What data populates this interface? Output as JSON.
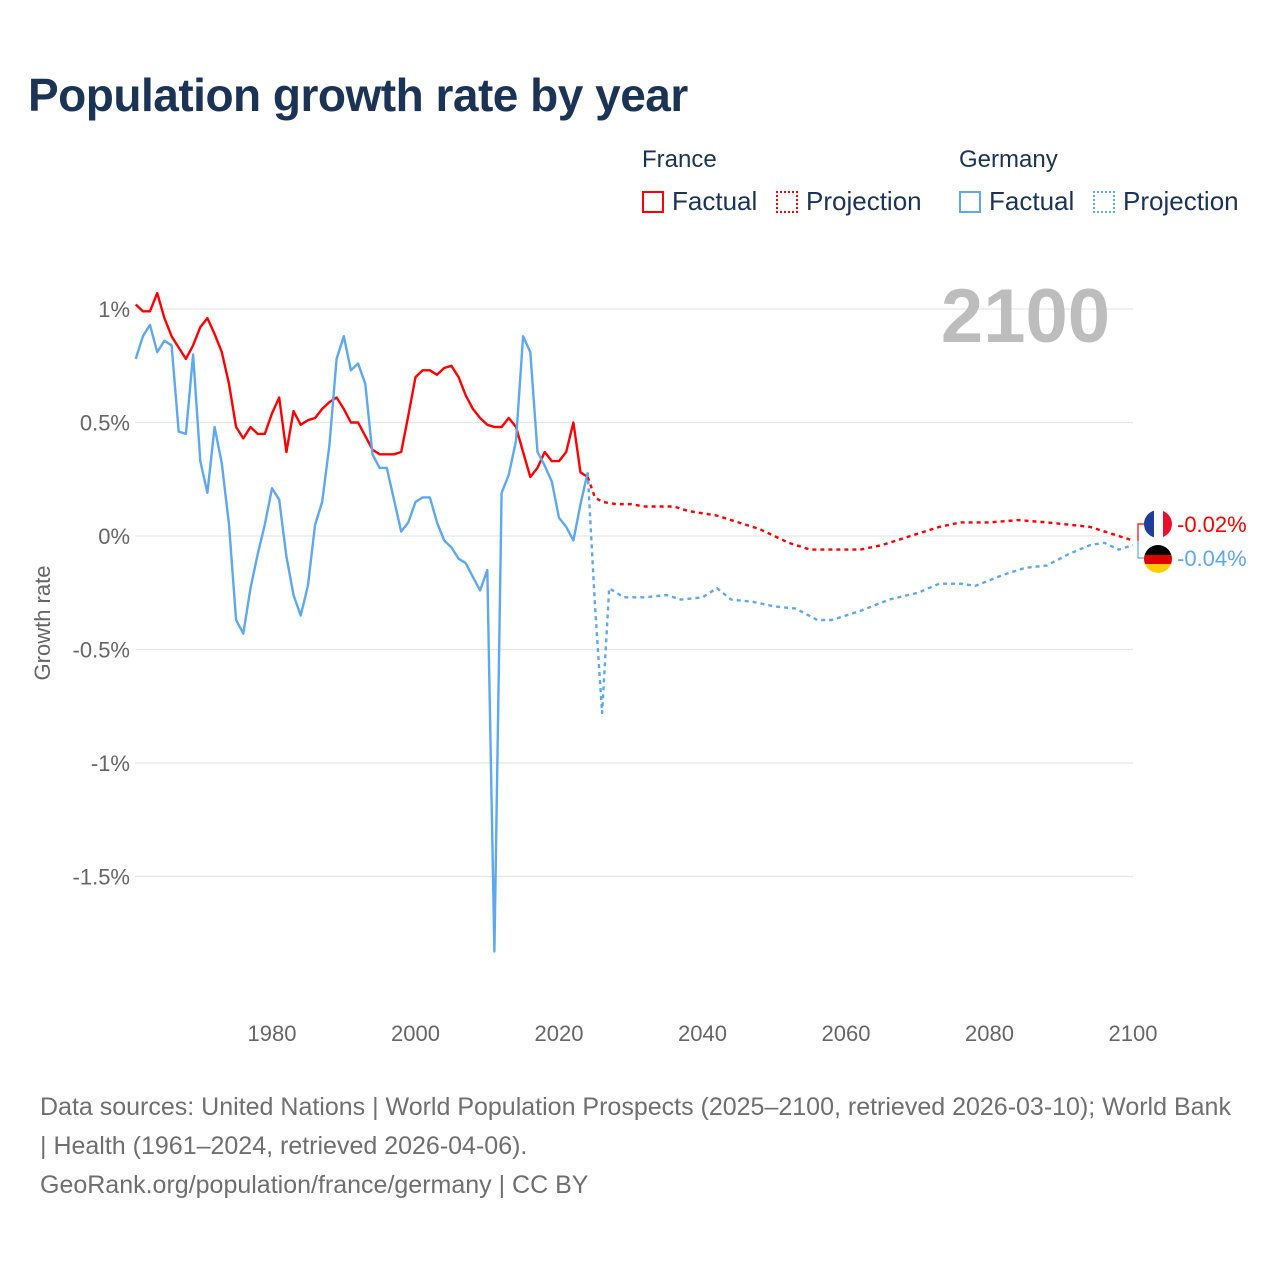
{
  "title": "Population growth rate by year",
  "legend": {
    "groups": [
      {
        "name": "France",
        "color": "#ff0000",
        "items": [
          "Factual",
          "Projection"
        ]
      },
      {
        "name": "Germany",
        "color": "#5ea8ee",
        "items": [
          "Factual",
          "Projection"
        ]
      }
    ]
  },
  "year_watermark": "2100",
  "end_labels": [
    {
      "country": "France",
      "text": "-0.02%",
      "color": "#ff0000",
      "icon": "france-flag-icon"
    },
    {
      "country": "Germany",
      "text": "-0.04%",
      "color": "#5ea8ee",
      "icon": "germany-flag-icon"
    }
  ],
  "footer": {
    "line1": "Data sources: United Nations | World Population Prospects (2025–2100, retrieved 2026-03-10); World Bank | Health (1961–2024, retrieved 2026-04-06).",
    "line2": "GeoRank.org/population/france/germany | CC BY"
  },
  "chart_data": {
    "type": "line",
    "title": "Population growth rate by year",
    "xlabel": "",
    "ylabel": "Growth rate",
    "xlim": [
      1961,
      2100
    ],
    "ylim": [
      -1.85,
      1.1
    ],
    "xticks": [
      1980,
      2000,
      2020,
      2040,
      2060,
      2080,
      2100
    ],
    "yticks": [
      {
        "v": 1,
        "label": "1%"
      },
      {
        "v": 0.5,
        "label": "0.5%"
      },
      {
        "v": 0,
        "label": "0%"
      },
      {
        "v": -0.5,
        "label": "-0.5%"
      },
      {
        "v": -1,
        "label": "-1%"
      },
      {
        "v": -1.5,
        "label": "-1.5%"
      }
    ],
    "grid": true,
    "series": [
      {
        "name": "France Factual",
        "color": "#ff0000",
        "dashed": false,
        "x_start": 1961,
        "values": [
          1.02,
          0.99,
          0.99,
          1.07,
          0.96,
          0.88,
          0.83,
          0.78,
          0.84,
          0.92,
          0.96,
          0.89,
          0.81,
          0.67,
          0.48,
          0.43,
          0.48,
          0.45,
          0.45,
          0.54,
          0.61,
          0.37,
          0.55,
          0.49,
          0.51,
          0.52,
          0.56,
          0.59,
          0.61,
          0.56,
          0.5,
          0.5,
          0.44,
          0.38,
          0.36,
          0.36,
          0.36,
          0.37,
          0.53,
          0.7,
          0.73,
          0.73,
          0.71,
          0.74,
          0.75,
          0.7,
          0.62,
          0.56,
          0.52,
          0.49,
          0.48,
          0.48,
          0.52,
          0.48,
          0.37,
          0.26,
          0.3,
          0.37,
          0.33,
          0.33,
          0.37,
          0.5,
          0.28,
          0.26
        ]
      },
      {
        "name": "France Projection",
        "color": "#ff0000",
        "dashed": true,
        "points": [
          [
            2024,
            0.26
          ],
          [
            2025,
            0.17
          ],
          [
            2026,
            0.15
          ],
          [
            2028,
            0.14
          ],
          [
            2030,
            0.14
          ],
          [
            2032,
            0.13
          ],
          [
            2036,
            0.13
          ],
          [
            2038,
            0.11
          ],
          [
            2040,
            0.1
          ],
          [
            2042,
            0.09
          ],
          [
            2045,
            0.06
          ],
          [
            2048,
            0.03
          ],
          [
            2050,
            0.0
          ],
          [
            2052,
            -0.03
          ],
          [
            2055,
            -0.06
          ],
          [
            2058,
            -0.06
          ],
          [
            2062,
            -0.06
          ],
          [
            2065,
            -0.04
          ],
          [
            2068,
            -0.01
          ],
          [
            2070,
            0.01
          ],
          [
            2073,
            0.04
          ],
          [
            2076,
            0.06
          ],
          [
            2080,
            0.06
          ],
          [
            2084,
            0.07
          ],
          [
            2088,
            0.06
          ],
          [
            2091,
            0.05
          ],
          [
            2094,
            0.04
          ],
          [
            2097,
            0.01
          ],
          [
            2100,
            -0.02
          ]
        ]
      },
      {
        "name": "Germany Factual",
        "color": "#5ea8ee",
        "dashed": false,
        "x_start": 1961,
        "values": [
          0.78,
          0.88,
          0.93,
          0.81,
          0.86,
          0.84,
          0.46,
          0.45,
          0.8,
          0.33,
          0.19,
          0.48,
          0.32,
          0.05,
          -0.37,
          -0.43,
          -0.23,
          -0.08,
          0.05,
          0.21,
          0.16,
          -0.09,
          -0.26,
          -0.35,
          -0.22,
          0.05,
          0.15,
          0.4,
          0.78,
          0.88,
          0.73,
          0.76,
          0.67,
          0.36,
          0.3,
          0.3,
          0.16,
          0.02,
          0.06,
          0.15,
          0.17,
          0.17,
          0.06,
          -0.02,
          -0.05,
          -0.1,
          -0.12,
          -0.18,
          -0.24,
          -0.15,
          -1.83,
          0.19,
          0.27,
          0.42,
          0.88,
          0.81,
          0.37,
          0.31,
          0.24,
          0.08,
          0.04,
          -0.02,
          0.14,
          0.28
        ]
      },
      {
        "name": "Germany Projection",
        "color": "#5ea8ee",
        "dashed": true,
        "points": [
          [
            2024,
            0.28
          ],
          [
            2025,
            -0.3
          ],
          [
            2026,
            -0.78
          ],
          [
            2027,
            -0.23
          ],
          [
            2029,
            -0.27
          ],
          [
            2032,
            -0.27
          ],
          [
            2035,
            -0.26
          ],
          [
            2037,
            -0.28
          ],
          [
            2040,
            -0.27
          ],
          [
            2042,
            -0.23
          ],
          [
            2044,
            -0.28
          ],
          [
            2047,
            -0.29
          ],
          [
            2050,
            -0.31
          ],
          [
            2053,
            -0.32
          ],
          [
            2056,
            -0.37
          ],
          [
            2058,
            -0.37
          ],
          [
            2062,
            -0.33
          ],
          [
            2066,
            -0.28
          ],
          [
            2070,
            -0.25
          ],
          [
            2073,
            -0.21
          ],
          [
            2076,
            -0.21
          ],
          [
            2078,
            -0.22
          ],
          [
            2082,
            -0.17
          ],
          [
            2085,
            -0.14
          ],
          [
            2088,
            -0.13
          ],
          [
            2091,
            -0.08
          ],
          [
            2094,
            -0.04
          ],
          [
            2096,
            -0.03
          ],
          [
            2098,
            -0.06
          ],
          [
            2100,
            -0.04
          ]
        ]
      }
    ]
  }
}
